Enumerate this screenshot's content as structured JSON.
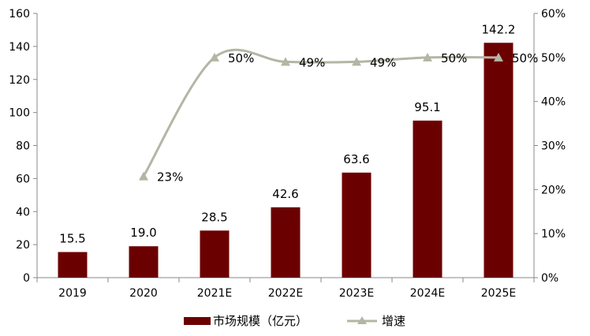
{
  "chart_data": {
    "type": "bar",
    "categories": [
      "2019",
      "2020",
      "2021E",
      "2022E",
      "2023E",
      "2024E",
      "2025E"
    ],
    "series": [
      {
        "name": "市场规模（亿元）",
        "type": "bar",
        "axis": "left",
        "values": [
          15.5,
          19.0,
          28.5,
          42.6,
          63.6,
          95.1,
          142.2
        ],
        "labels": [
          "15.5",
          "19.0",
          "28.5",
          "42.6",
          "63.6",
          "95.1",
          "142.2"
        ],
        "color": "#6b0000"
      },
      {
        "name": "增速",
        "type": "line",
        "axis": "right",
        "values": [
          null,
          23,
          50,
          49,
          49,
          50,
          50
        ],
        "labels": [
          null,
          "23%",
          "50%",
          "49%",
          "49%",
          "50%",
          "50%"
        ],
        "color": "#b5b5a5"
      }
    ],
    "y_left": {
      "min": 0,
      "max": 160,
      "ticks": [
        "0",
        "20",
        "40",
        "60",
        "80",
        "100",
        "120",
        "140",
        "160"
      ]
    },
    "y_right": {
      "min": 0,
      "max": 60,
      "ticks": [
        "0%",
        "10%",
        "20%",
        "30%",
        "40%",
        "50%",
        "60%"
      ]
    },
    "grid": false,
    "legend_position": "bottom-center"
  }
}
